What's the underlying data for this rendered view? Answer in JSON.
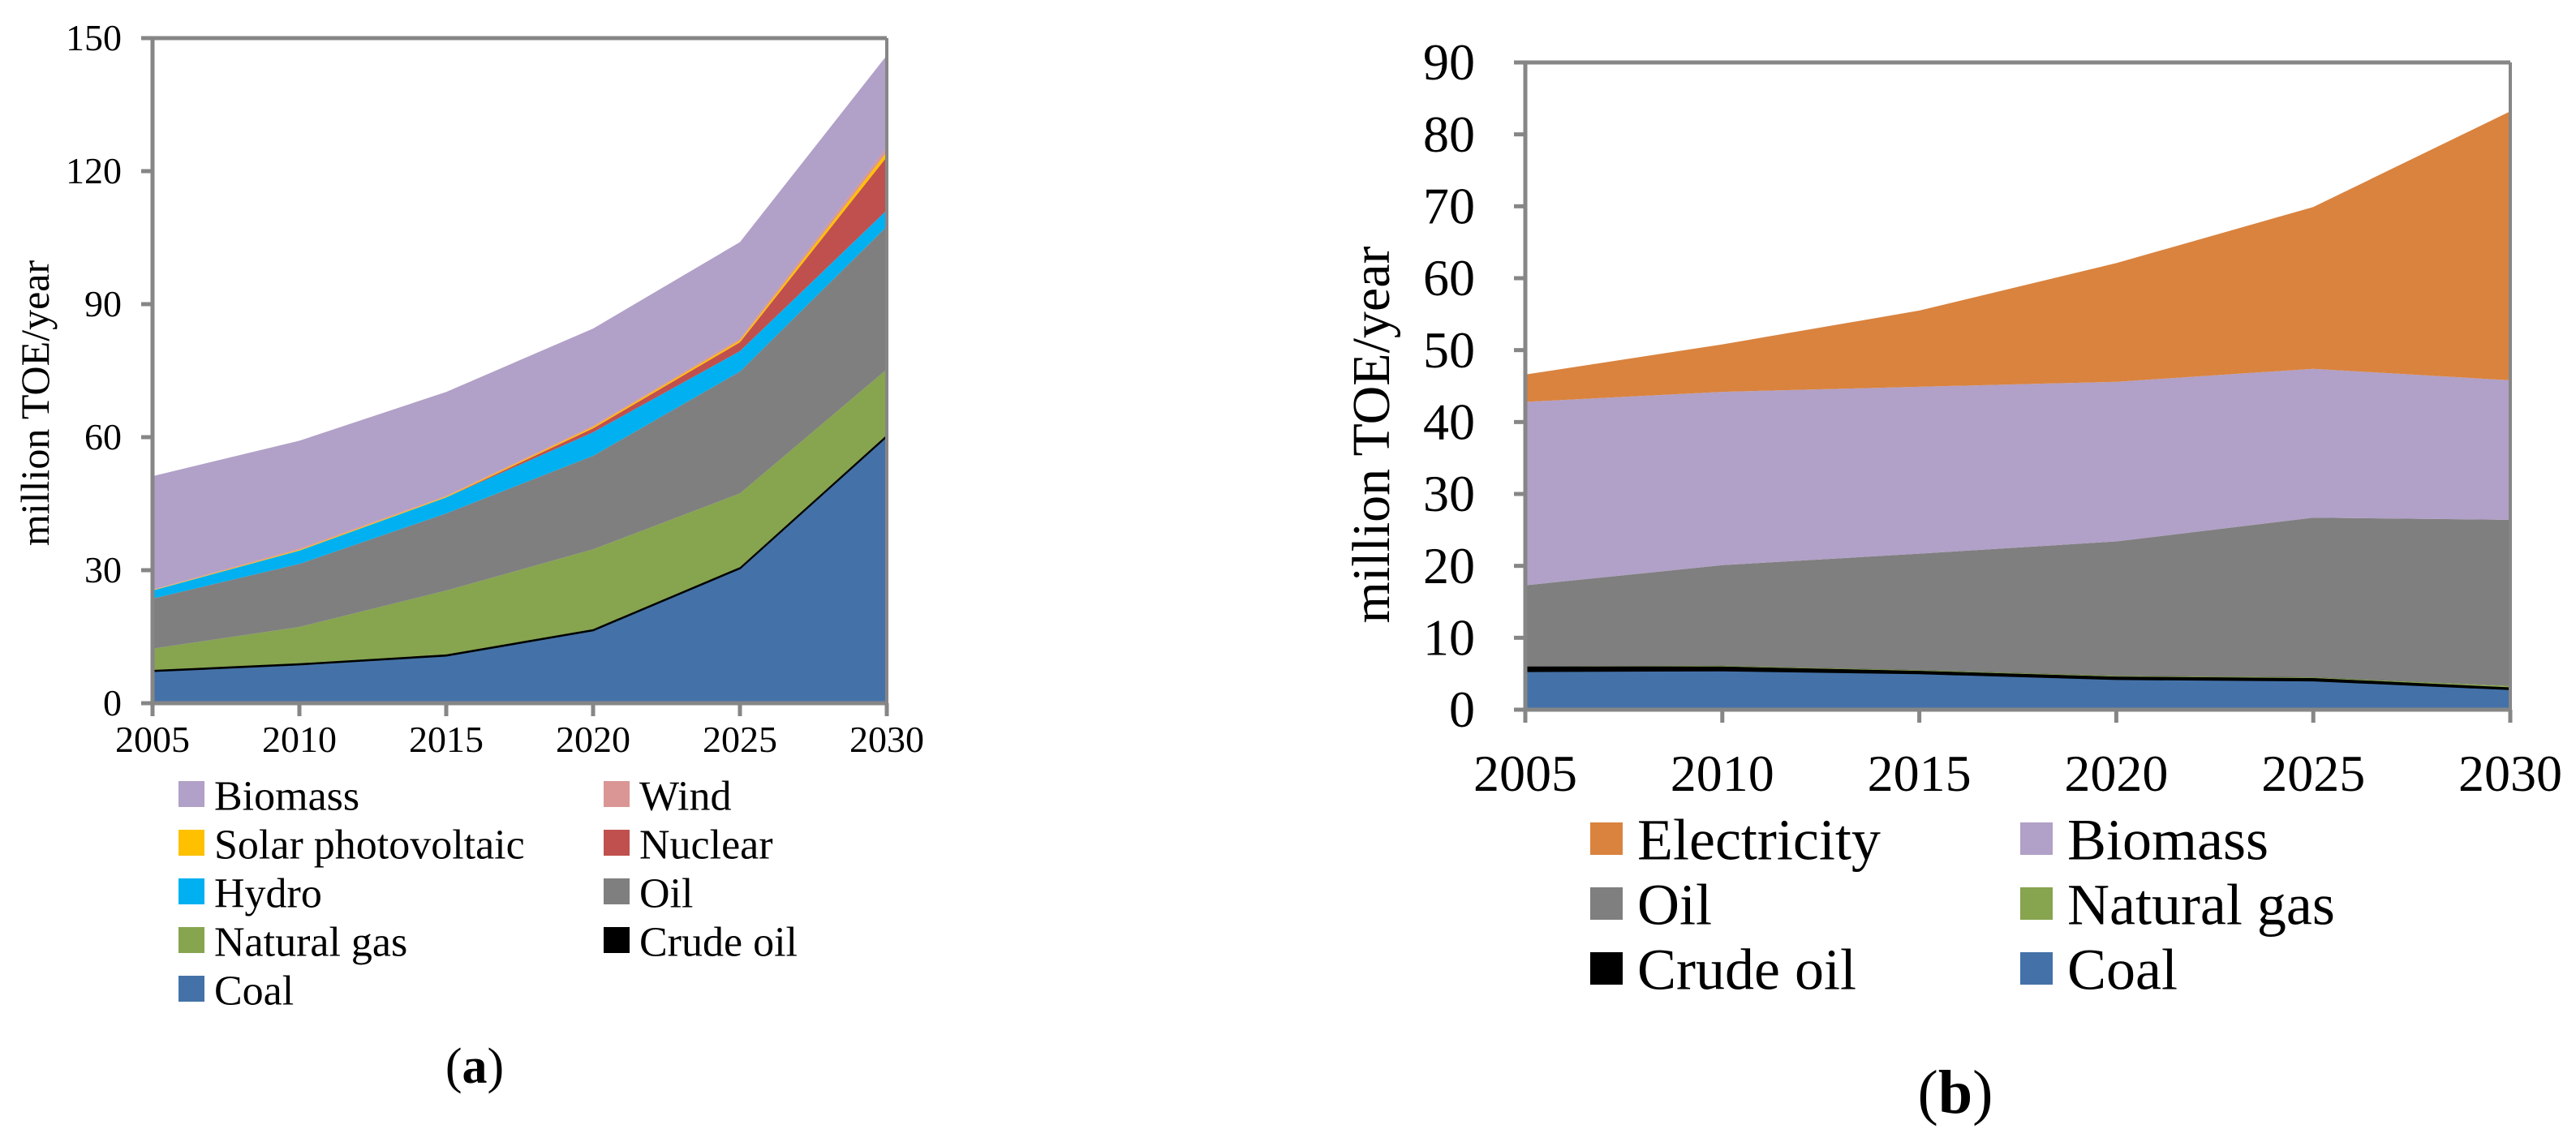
{
  "chart_data": [
    {
      "panel_label": "(a)",
      "panel_letter": "a",
      "type": "area",
      "stacked": true,
      "title": "",
      "xlabel": "",
      "ylabel": "million TOE/year",
      "x": [
        2005,
        2010,
        2015,
        2020,
        2025,
        2030
      ],
      "x_ticks": [
        "2005",
        "2010",
        "2015",
        "2020",
        "2025",
        "2030"
      ],
      "xlim": [
        2005,
        2030
      ],
      "ylim": [
        0,
        150
      ],
      "y_ticks": [
        0,
        30,
        60,
        90,
        120,
        150
      ],
      "grid": false,
      "legend_position": "bottom",
      "series": [
        {
          "name": "Coal",
          "color": "#4472A8",
          "values": [
            7.3,
            8.8,
            10.8,
            16.5,
            30.5,
            60.3
          ]
        },
        {
          "name": "Crude oil",
          "color": "#000000",
          "values": [
            0.2,
            0.2,
            0.2,
            0.2,
            0.2,
            0.2
          ]
        },
        {
          "name": "Natural gas",
          "color": "#87A44F",
          "values": [
            4.8,
            8.2,
            14.4,
            18.0,
            16.6,
            14.8
          ]
        },
        {
          "name": "Oil",
          "color": "#7F7F7F",
          "values": [
            11.3,
            14.2,
            17.4,
            21.1,
            27.5,
            32.2
          ]
        },
        {
          "name": "Hydro",
          "color": "#00B0F0",
          "values": [
            1.8,
            3.0,
            3.6,
            5.3,
            4.6,
            3.7
          ]
        },
        {
          "name": "Nuclear",
          "color": "#C0504D",
          "values": [
            0.0,
            0.0,
            0.0,
            0.9,
            2.0,
            12.0
          ]
        },
        {
          "name": "Solar photovoltaic",
          "color": "#FFC000",
          "values": [
            0.1,
            0.2,
            0.2,
            0.3,
            0.4,
            1.1
          ]
        },
        {
          "name": "Wind",
          "color": "#D99694",
          "values": [
            0.1,
            0.3,
            0.2,
            0.3,
            0.4,
            1.0
          ]
        },
        {
          "name": "Biomass",
          "color": "#B1A0C7",
          "values": [
            25.6,
            24.3,
            23.4,
            21.9,
            21.8,
            20.8
          ]
        }
      ],
      "legend_order": [
        "Biomass",
        "Wind",
        "Solar photovoltaic",
        "Nuclear",
        "Hydro",
        "Oil",
        "Natural gas",
        "Crude oil",
        "Coal"
      ]
    },
    {
      "panel_label": "(b)",
      "panel_letter": "b",
      "type": "area",
      "stacked": true,
      "title": "",
      "xlabel": "",
      "ylabel": "million TOE/year",
      "x": [
        2005,
        2010,
        2015,
        2020,
        2025,
        2030
      ],
      "x_ticks": [
        "2005",
        "2010",
        "2015",
        "2020",
        "2025",
        "2030"
      ],
      "xlim": [
        2005,
        2030
      ],
      "ylim": [
        0,
        90
      ],
      "y_ticks": [
        0,
        10,
        20,
        30,
        40,
        50,
        60,
        70,
        80,
        90
      ],
      "grid": false,
      "legend_position": "bottom",
      "series": [
        {
          "name": "Coal",
          "color": "#4472A8",
          "values": [
            5.4,
            5.5,
            5.1,
            4.3,
            4.1,
            2.9
          ]
        },
        {
          "name": "Crude oil",
          "color": "#000000",
          "values": [
            0.6,
            0.5,
            0.3,
            0.3,
            0.3,
            0.2
          ]
        },
        {
          "name": "Natural gas",
          "color": "#87A44F",
          "values": [
            0.0,
            0.1,
            0.1,
            0.1,
            0.1,
            0.2
          ]
        },
        {
          "name": "Oil",
          "color": "#7F7F7F",
          "values": [
            11.3,
            14.0,
            16.2,
            18.7,
            22.2,
            23.1
          ]
        },
        {
          "name": "Biomass",
          "color": "#B1A0C7",
          "values": [
            25.5,
            24.1,
            23.2,
            22.2,
            20.7,
            19.4
          ]
        },
        {
          "name": "Electricity",
          "color": "#D9833F",
          "values": [
            3.8,
            6.6,
            10.6,
            16.5,
            22.5,
            37.4
          ]
        }
      ],
      "legend_order": [
        "Electricity",
        "Biomass",
        "Oil",
        "Natural gas",
        "Crude oil",
        "Coal"
      ]
    }
  ],
  "axis_color": "#868686"
}
